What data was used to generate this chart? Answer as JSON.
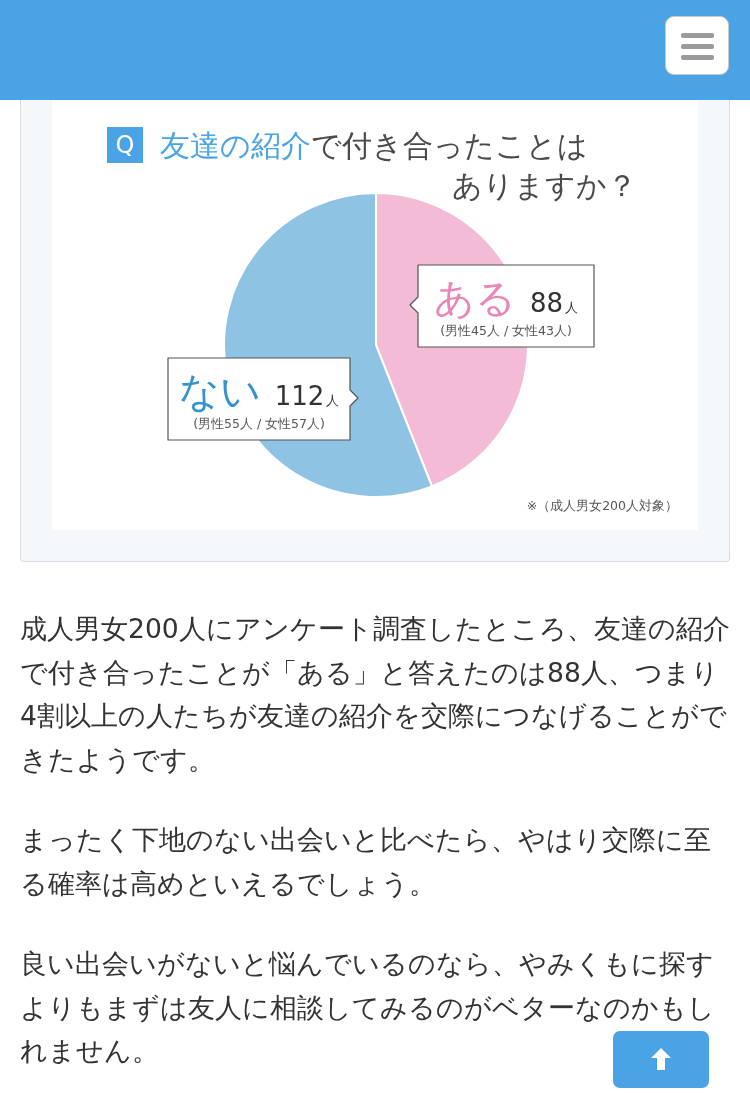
{
  "chart_data": {
    "type": "pie",
    "title": "友達の紹介で付き合ったことはありますか？",
    "categories": [
      "ある",
      "ない"
    ],
    "values": [
      88,
      112
    ],
    "colors": [
      "#f4bbd7",
      "#8ec3e4"
    ],
    "value_labels": [
      "88人",
      "112人"
    ],
    "annotations": [
      "Q",
      "(男性45人 / 女性43人)",
      "(男性55人 / 女性57人)",
      "※（成人男女200人対象）",
      "成人男女200人にアンケート調査したところ、友達の紹介で付き合ったことが「ある」と答えたのは88人、つまり4割以上の人たちが友達の紹介を交際につなげることができたようです。",
      "まったく下地のない出会いと比べたら、やはり交際に至る確率は高めといえるでしょう。",
      "良い出会いがないと悩んでいるのなら、やみくもに探すよりもまずは友人に相談してみるのがベターなのかもしれません。"
    ]
  }
}
